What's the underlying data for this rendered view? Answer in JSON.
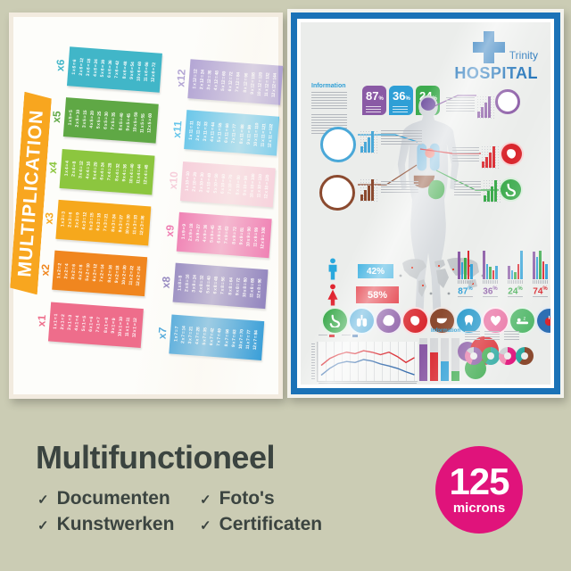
{
  "background_color": "#cbccb4",
  "caption": {
    "heading": "Multifunctioneel",
    "check_glyph": "✓",
    "features": [
      "Documenten",
      "Kunstwerken",
      "Foto's",
      "Certificaten"
    ],
    "badge": {
      "value": "125",
      "unit": "microns",
      "color": "#e0137b"
    }
  },
  "multiplication_poster": {
    "title": "MULTIPLICATION",
    "banner_color": "#f8a61f",
    "tables": [
      {
        "label": "x6",
        "color": "#41b6c8",
        "entries": [
          "1 x 6 = 6",
          "2 x 6 = 12",
          "3 x 6 = 18",
          "4 x 6 = 24",
          "5 x 6 = 30",
          "6 x 6 = 36",
          "7 x 6 = 42",
          "8 x 6 = 48",
          "9 x 6 = 54",
          "10 x 6 = 60",
          "11 x 6 = 66",
          "12 x 6 = 72"
        ]
      },
      {
        "label": "x5",
        "color": "#5fa845",
        "entries": [
          "1 x 5 = 5",
          "2 x 5 = 10",
          "3 x 5 = 15",
          "4 x 5 = 20",
          "5 x 5 = 25",
          "6 x 5 = 30",
          "7 x 5 = 35",
          "8 x 5 = 40",
          "9 x 5 = 45",
          "10 x 5 = 50",
          "11 x 5 = 55",
          "12 x 5 = 60"
        ]
      },
      {
        "label": "x4",
        "color": "#8cc63f",
        "entries": [
          "1 x 4 = 4",
          "2 x 4 = 8",
          "3 x 4 = 12",
          "4 x 4 = 16",
          "5 x 4 = 20",
          "6 x 4 = 24",
          "7 x 4 = 28",
          "8 x 4 = 32",
          "9 x 4 = 36",
          "10 x 4 = 40",
          "11 x 4 = 44",
          "12 x 4 = 48"
        ]
      },
      {
        "label": "x3",
        "color": "#f6a81c",
        "entries": [
          "1 x 3 = 3",
          "2 x 3 = 6",
          "3 x 3 = 9",
          "4 x 3 = 12",
          "5 x 3 = 15",
          "6 x 3 = 18",
          "7 x 3 = 21",
          "8 x 3 = 24",
          "9 x 3 = 27",
          "10 x 3 = 30",
          "11 x 3 = 33",
          "12 x 3 = 36"
        ]
      },
      {
        "label": "x2",
        "color": "#f0861f",
        "entries": [
          "1 x 2 = 2",
          "2 x 2 = 4",
          "3 x 2 = 6",
          "4 x 2 = 8",
          "5 x 2 = 10",
          "6 x 2 = 12",
          "7 x 2 = 14",
          "8 x 2 = 16",
          "9 x 2 = 18",
          "10 x 2 = 20",
          "11 x 2 = 22",
          "12 x 2 = 24"
        ]
      },
      {
        "label": "x1",
        "color": "#ee6d8b",
        "entries": [
          "1 x 1 = 1",
          "2 x 1 = 2",
          "3 x 1 = 3",
          "4 x 1 = 4",
          "5 x 1 = 5",
          "6 x 1 = 6",
          "7 x 1 = 7",
          "8 x 1 = 8",
          "9 x 1 = 9",
          "10 x 1 = 10",
          "11 x 1 = 11",
          "12 x 1 = 12"
        ]
      },
      {
        "label": "x12",
        "color": "#b2a4d4",
        "entries": [
          "1 x 12 = 12",
          "2 x 12 = 24",
          "3 x 12 = 36",
          "4 x 12 = 48",
          "5 x 12 = 60",
          "6 x 12 = 72",
          "7 x 12 = 84",
          "8 x 12 = 96",
          "9 x 12 = 108",
          "10 x 12 = 120",
          "11 x 12 = 132",
          "12 x 12 = 144"
        ]
      },
      {
        "label": "x11",
        "color": "#62c4ea",
        "entries": [
          "1 x 11 = 11",
          "2 x 11 = 22",
          "3 x 11 = 33",
          "4 x 11 = 44",
          "5 x 11 = 55",
          "6 x 11 = 66",
          "7 x 11 = 77",
          "8 x 11 = 88",
          "9 x 11 = 99",
          "10 x 11 = 110",
          "11 x 11 = 121",
          "12 x 11 = 132"
        ]
      },
      {
        "label": "x10",
        "color": "#f6cbd9",
        "entries": [
          "1 x 10 = 10",
          "2 x 10 = 20",
          "3 x 10 = 30",
          "4 x 10 = 40",
          "5 x 10 = 50",
          "6 x 10 = 60",
          "7 x 10 = 70",
          "8 x 10 = 80",
          "9 x 10 = 90",
          "10 x 10 = 100",
          "11 x 10 = 110",
          "12 x 10 = 120"
        ]
      },
      {
        "label": "x9",
        "color": "#ee6fab",
        "entries": [
          "1 x 9 = 9",
          "2 x 9 = 18",
          "3 x 9 = 27",
          "4 x 9 = 36",
          "5 x 9 = 45",
          "6 x 9 = 54",
          "7 x 9 = 63",
          "8 x 9 = 72",
          "9 x 9 = 81",
          "10 x 9 = 90",
          "11 x 9 = 99",
          "12 x 9 = 108"
        ]
      },
      {
        "label": "x8",
        "color": "#8678b9",
        "entries": [
          "1 x 8 = 8",
          "2 x 8 = 16",
          "3 x 8 = 24",
          "4 x 8 = 32",
          "5 x 8 = 40",
          "6 x 8 = 48",
          "7 x 8 = 56",
          "8 x 8 = 64",
          "9 x 8 = 72",
          "10 x 8 = 80",
          "11 x 8 = 88",
          "12 x 8 = 96"
        ]
      },
      {
        "label": "x7",
        "color": "#2f9ad7",
        "entries": [
          "1 x 7 = 7",
          "2 x 7 = 14",
          "3 x 7 = 21",
          "4 x 7 = 28",
          "5 x 7 = 35",
          "6 x 7 = 42",
          "7 x 7 = 49",
          "8 x 7 = 56",
          "9 x 7 = 63",
          "10 x 7 = 70",
          "11 x 7 = 77",
          "12 x 7 = 84"
        ]
      }
    ]
  },
  "hospital_poster": {
    "frame_color": "#1b72b7",
    "brand": {
      "name": "Trinity",
      "type": "HOSPITAL",
      "color": "#1d71b8"
    },
    "info_title": "Information",
    "info_title_bottom": "Information",
    "stat_badges": [
      {
        "value": "87",
        "suffix": "%",
        "color": "#8a5aa5"
      },
      {
        "value": "36",
        "suffix": "%",
        "color": "#2e9fd6"
      },
      {
        "value": "24",
        "suffix": "%",
        "color": "#3dab4e"
      }
    ],
    "callouts": [
      {
        "organ": "brain",
        "color": "#8a5aa5"
      },
      {
        "organ": "lungs",
        "color": "#4aa8d8"
      },
      {
        "organ": "heart-organ",
        "color": "#d9272e"
      },
      {
        "organ": "liver",
        "color": "#8b4a2f"
      },
      {
        "organ": "stomach",
        "color": "#3dab4e"
      }
    ],
    "gender_stats": [
      {
        "icon": "male",
        "value": "42%",
        "color": "#29a8dd"
      },
      {
        "icon": "female",
        "value": "58%",
        "color": "#e0242f"
      }
    ],
    "bar_groups": [
      {
        "value": "87",
        "suffix": "%",
        "color": "#2e9fd6",
        "bars": [
          0.9,
          0.55,
          0.7,
          0.95,
          0.5
        ]
      },
      {
        "value": "36",
        "suffix": "%",
        "color": "#8a5aa5",
        "bars": [
          0.95,
          0.5,
          0.4,
          0.3,
          0.45
        ]
      },
      {
        "value": "24",
        "suffix": "%",
        "color": "#3dab4e",
        "bars": [
          0.45,
          0.3,
          0.25,
          0.5,
          0.95
        ]
      },
      {
        "value": "74",
        "suffix": "%",
        "color": "#d9272e",
        "bars": [
          0.9,
          0.75,
          0.95,
          0.6,
          0.5
        ]
      }
    ],
    "bar_colors": [
      "#8a5aa5",
      "#2e9fd6",
      "#3dab4e",
      "#d9272e",
      "#2e9fd6"
    ],
    "organ_icons": [
      {
        "icon": "stomach",
        "color": "#3dab4e"
      },
      {
        "icon": "lungs",
        "color": "#4aa8d8"
      },
      {
        "icon": "brain",
        "color": "#8a5aa5"
      },
      {
        "icon": "heart-organ",
        "color": "#d9272e"
      },
      {
        "icon": "liver",
        "color": "#8b4a2f"
      },
      {
        "icon": "tooth",
        "color": "#2196c9"
      },
      {
        "icon": "heart",
        "color": "#e86ca0"
      },
      {
        "icon": "sleep",
        "color": "#52b86a"
      },
      {
        "icon": "apple",
        "color": "#2e6fb3"
      }
    ],
    "venn_colors": [
      "#8a5aa5",
      "#d9272e",
      "#3dab4e"
    ],
    "chart_data": [
      {
        "type": "line",
        "series": [
          {
            "name": "series-red",
            "color": "#d9272e",
            "values": [
              28,
              42,
              50,
              55,
              52,
              58,
              55,
              50,
              55,
              46,
              34,
              44
            ]
          },
          {
            "name": "series-blue",
            "color": "#3a6fae",
            "values": [
              8,
              22,
              32,
              36,
              34,
              40,
              37,
              31,
              27,
              22,
              15,
              9
            ]
          }
        ]
      },
      {
        "type": "bar",
        "values": [
          0.85,
          0.66,
          0.45,
          0.22
        ],
        "colors": [
          "#8a5aa5",
          "#d9272e",
          "#2e9fd6",
          "#3dab4e"
        ]
      },
      {
        "type": "donut-set",
        "donuts": [
          [
            [
              "#8a5aa5",
              55
            ],
            [
              "#e87daa",
              30
            ],
            [
              "#c9ccd0",
              15
            ]
          ],
          [
            [
              "#2ba9a0",
              60
            ],
            [
              "#3dab4e",
              40
            ]
          ],
          [
            [
              "#e0137b",
              55
            ],
            [
              "#f08ab0",
              25
            ],
            [
              "#c9ccd0",
              20
            ]
          ],
          [
            [
              "#8b4a2f",
              60
            ],
            [
              "#2ba9a0",
              40
            ]
          ]
        ]
      }
    ]
  }
}
